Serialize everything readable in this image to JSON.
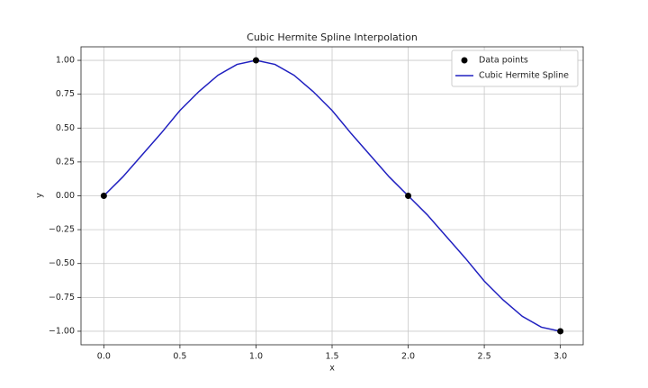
{
  "chart_data": {
    "type": "line",
    "title": "Cubic Hermite Spline Interpolation",
    "xlabel": "x",
    "ylabel": "y",
    "xlim": [
      -0.15,
      3.15
    ],
    "ylim": [
      -1.1,
      1.1
    ],
    "xticks": [
      {
        "value": 0,
        "label": "0.0"
      },
      {
        "value": 0.5,
        "label": "0.5"
      },
      {
        "value": 1,
        "label": "1.0"
      },
      {
        "value": 1.5,
        "label": "1.5"
      },
      {
        "value": 2,
        "label": "2.0"
      },
      {
        "value": 2.5,
        "label": "2.5"
      },
      {
        "value": 3,
        "label": "3.0"
      }
    ],
    "yticks": [
      {
        "value": -1,
        "label": "−1.00"
      },
      {
        "value": -0.75,
        "label": "−0.75"
      },
      {
        "value": -0.5,
        "label": "−0.50"
      },
      {
        "value": -0.25,
        "label": "−0.25"
      },
      {
        "value": 0,
        "label": "0.00"
      },
      {
        "value": 0.25,
        "label": "0.25"
      },
      {
        "value": 0.5,
        "label": "0.50"
      },
      {
        "value": 0.75,
        "label": "0.75"
      },
      {
        "value": 1,
        "label": "1.00"
      }
    ],
    "grid": true,
    "legend": "upper right",
    "series": [
      {
        "name": "Data points",
        "color": "#000000",
        "marker": "o",
        "x": [
          0,
          1,
          2,
          3
        ],
        "values": [
          0,
          1,
          0,
          -1
        ]
      },
      {
        "name": "Cubic Hermite Spline",
        "color": "#2020c0",
        "marker": "none",
        "x": [
          0,
          0.125,
          0.25,
          0.375,
          0.5,
          0.625,
          0.75,
          0.875,
          1,
          1.125,
          1.25,
          1.375,
          1.5,
          1.625,
          1.75,
          1.875,
          2,
          2.125,
          2.25,
          2.375,
          2.5,
          2.625,
          2.75,
          2.875,
          3
        ],
        "values": [
          0,
          0.14,
          0.3,
          0.46,
          0.63,
          0.77,
          0.89,
          0.97,
          1,
          0.97,
          0.89,
          0.77,
          0.63,
          0.46,
          0.3,
          0.14,
          0,
          -0.14,
          -0.3,
          -0.46,
          -0.63,
          -0.77,
          -0.89,
          -0.97,
          -1
        ]
      }
    ]
  }
}
